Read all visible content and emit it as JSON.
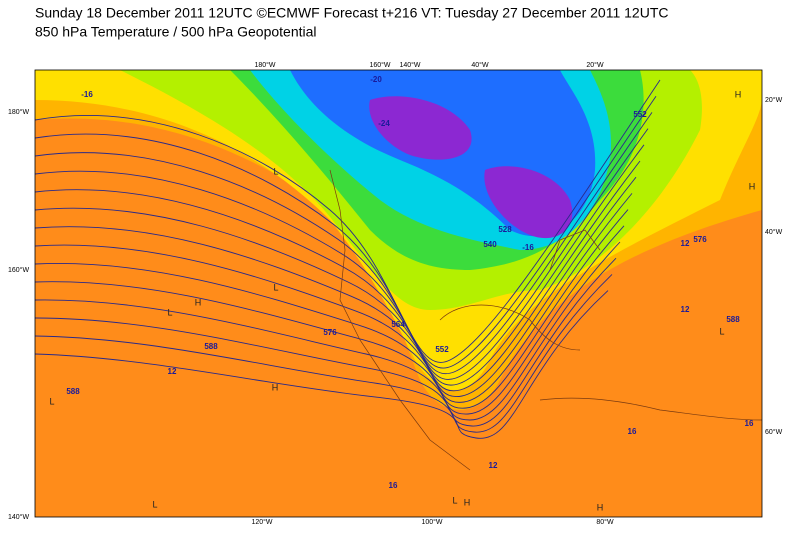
{
  "header": {
    "line1": "Sunday 18 December 2011 12UTC ©ECMWF Forecast t+216 VT: Tuesday 27 December 2011 12UTC",
    "line2": "850 hPa Temperature / 500 hPa Geopotential"
  },
  "axes": {
    "left": [
      "180°W",
      "160°W",
      "140°W"
    ],
    "right": [
      "20°W",
      "40°W",
      "60°W"
    ],
    "top": [
      "180°W",
      "160°W",
      "140°W",
      "40°W",
      "20°W"
    ],
    "bottom": [
      "120°W",
      "100°W",
      "80°W"
    ]
  },
  "contour_labels": [
    "552",
    "576",
    "588",
    "552",
    "564",
    "576",
    "588",
    "588",
    "540",
    "528",
    "-16",
    "-20",
    "-24",
    "12",
    "12",
    "16",
    "16",
    "12",
    "16",
    "12",
    "-16"
  ],
  "pressure_marks": [
    "L",
    "L",
    "L",
    "L",
    "L",
    "L",
    "L",
    "H",
    "H",
    "H",
    "H",
    "H",
    "H"
  ]
}
